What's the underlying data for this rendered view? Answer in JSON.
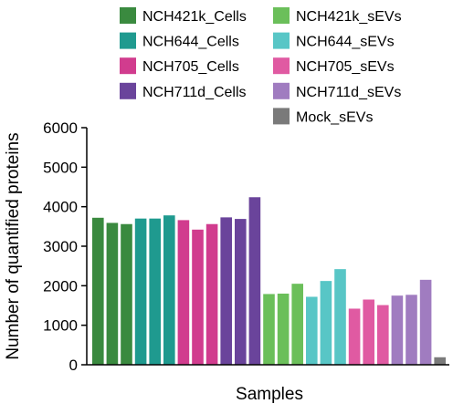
{
  "chart_data": {
    "type": "bar",
    "title": "",
    "xlabel": "Samples",
    "ylabel": "Number of quantified proteins",
    "ylim": [
      0,
      6000
    ],
    "yticks": [
      0,
      1000,
      2000,
      3000,
      4000,
      5000,
      6000
    ],
    "legend_position": "top",
    "series": [
      {
        "name": "NCH421k_Cells",
        "color": "#3a8a3f",
        "values": [
          3720,
          3590,
          3560
        ]
      },
      {
        "name": "NCH644_Cells",
        "color": "#1f9a8f",
        "values": [
          3700,
          3700,
          3780
        ]
      },
      {
        "name": "NCH705_Cells",
        "color": "#d13c8e",
        "values": [
          3660,
          3420,
          3560
        ]
      },
      {
        "name": "NCH711d_Cells",
        "color": "#6a449b",
        "values": [
          3730,
          3690,
          4240
        ]
      },
      {
        "name": "NCH421k_sEVs",
        "color": "#6bbf5a",
        "values": [
          1790,
          1800,
          2050
        ]
      },
      {
        "name": "NCH644_sEVs",
        "color": "#58c6c6",
        "values": [
          1720,
          2120,
          2420
        ]
      },
      {
        "name": "NCH705_sEVs",
        "color": "#e05aa2",
        "values": [
          1420,
          1650,
          1510
        ]
      },
      {
        "name": "NCH711d_sEVs",
        "color": "#a07cc0",
        "values": [
          1750,
          1770,
          2150
        ]
      },
      {
        "name": "Mock_sEVs",
        "color": "#7a7a7a",
        "values": [
          190
        ]
      }
    ]
  }
}
